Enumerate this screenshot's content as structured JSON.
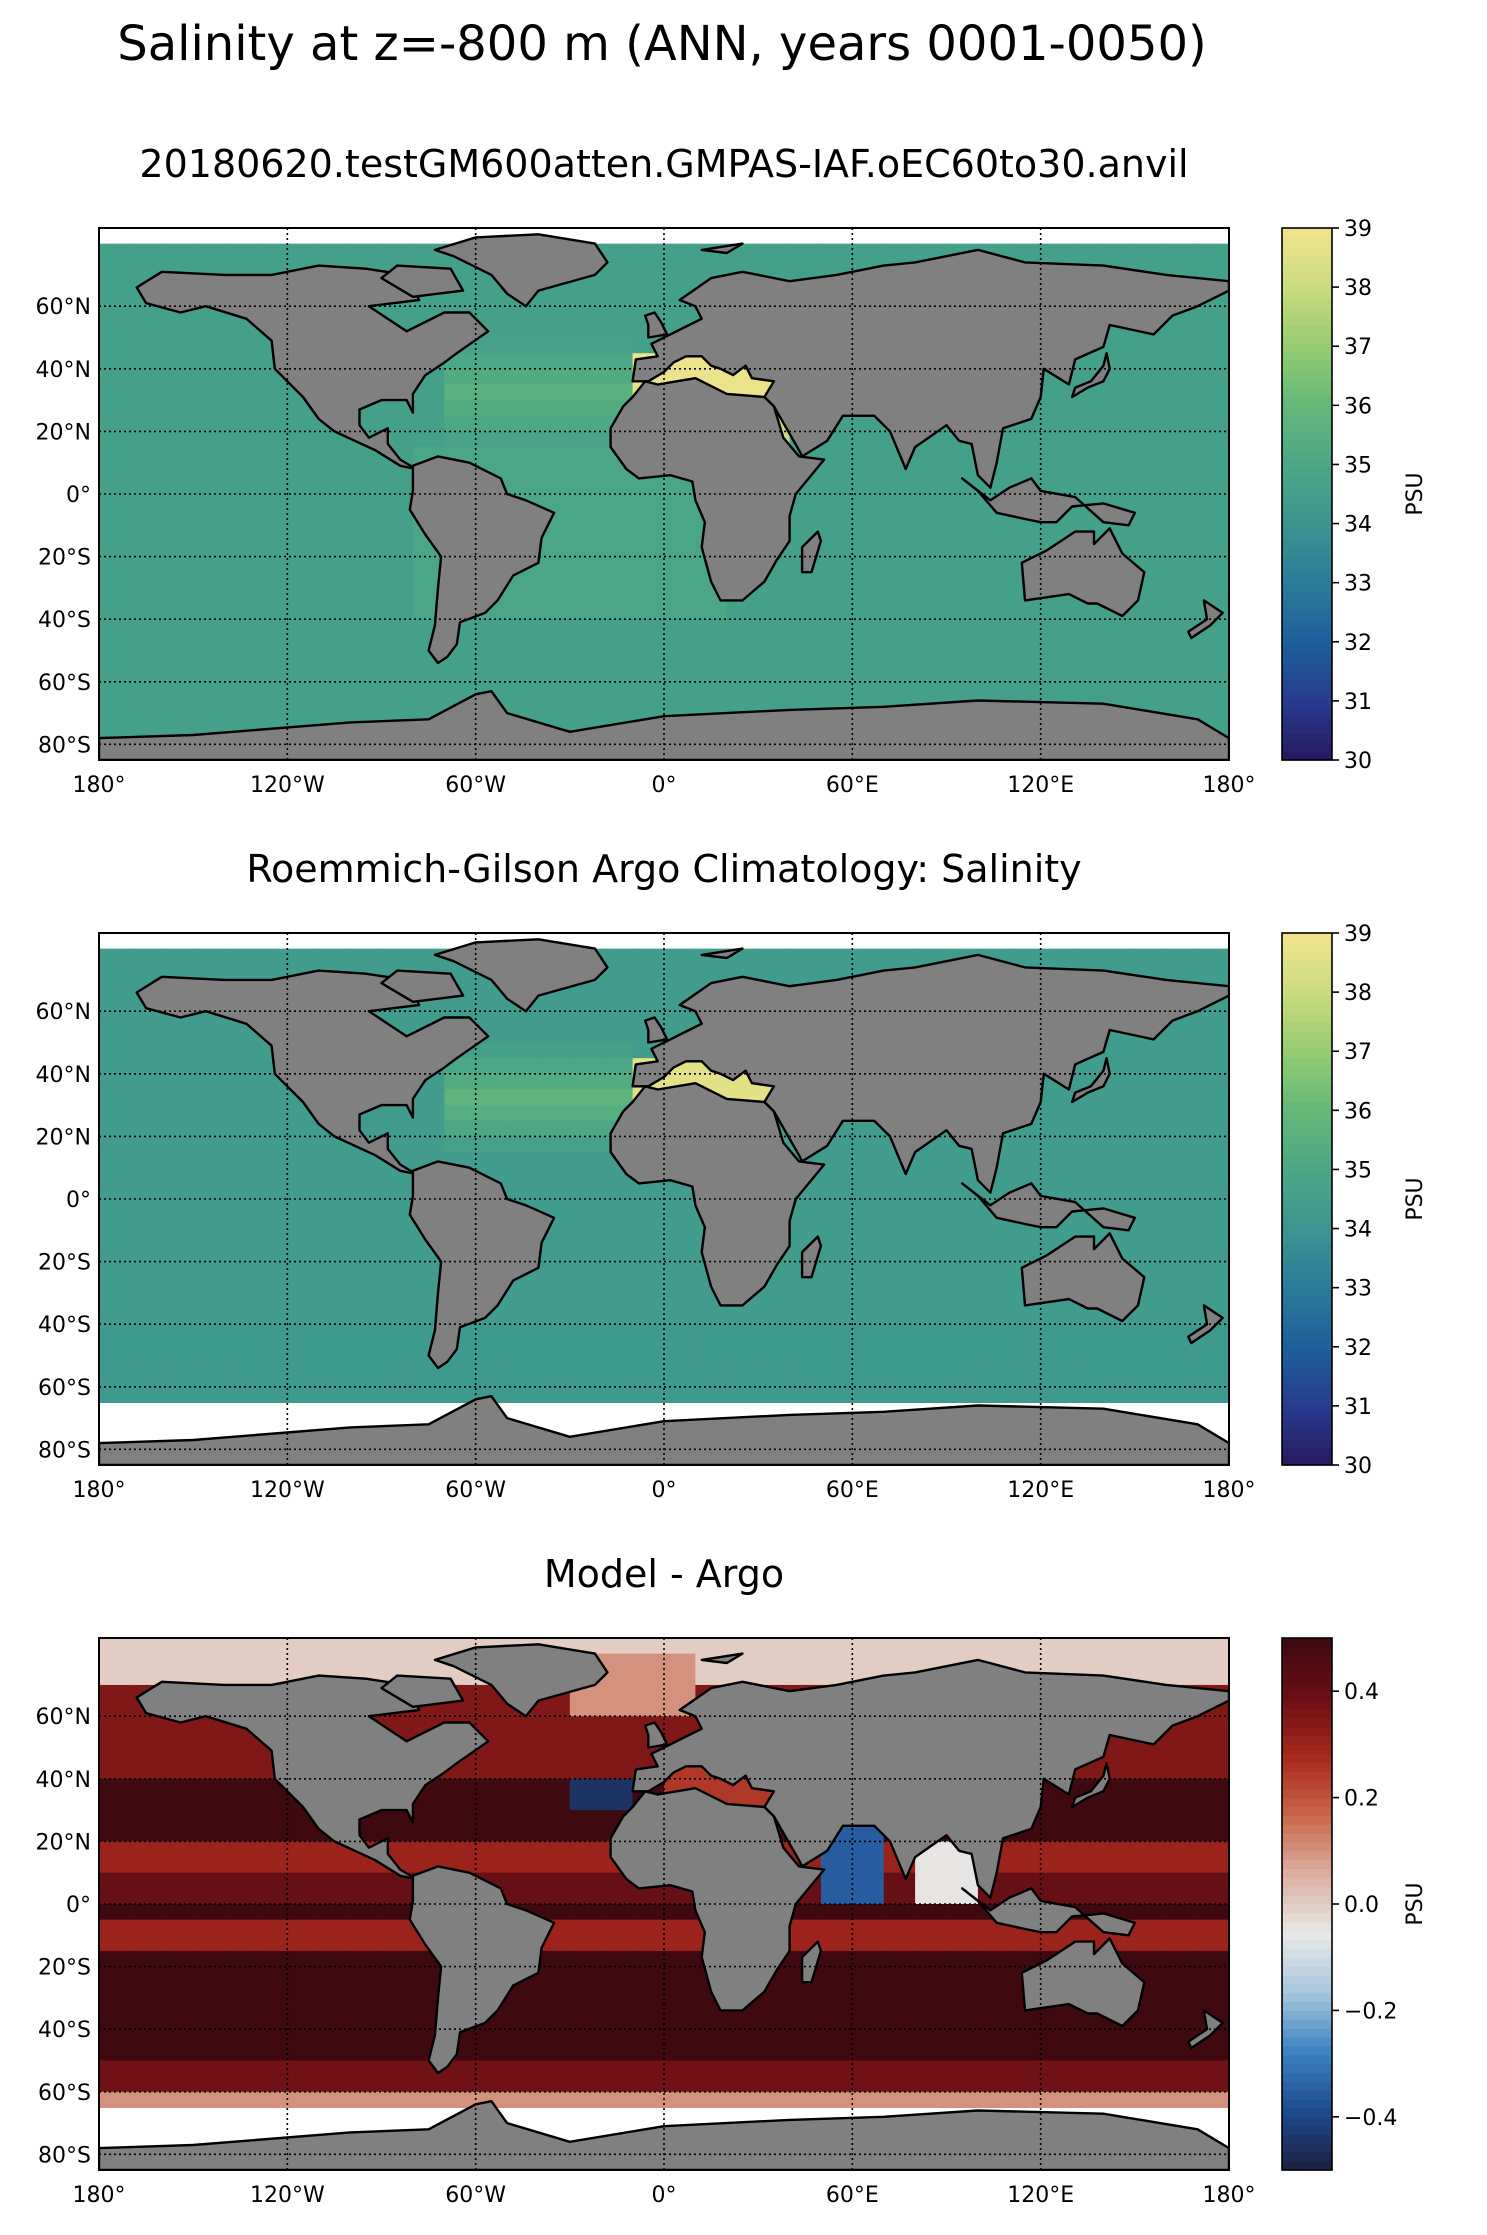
{
  "figure": {
    "title": "Salinity at z=-800 m (ANN, years 0001-0050)"
  },
  "map_axes": {
    "lon_ticks": [
      "180°",
      "120°W",
      "60°W",
      "0°",
      "60°E",
      "120°E",
      "180°"
    ],
    "lat_ticks": [
      "60°N",
      "40°N",
      "20°N",
      "0°",
      "20°S",
      "40°S",
      "60°S",
      "80°S"
    ],
    "lon_range": [
      -180,
      180
    ],
    "lat_range": [
      -85,
      85
    ],
    "grid": "dotted",
    "land_color": "#808080",
    "missing_color": "#ffffff"
  },
  "chart_data": [
    {
      "type": "heatmap",
      "title": "20180620.testGM600atten.GMPAS-IAF.oEC60to30.anvil",
      "colorbar": {
        "label": "PSU",
        "range": [
          30,
          39
        ],
        "ticks": [
          "30",
          "31",
          "32",
          "33",
          "34",
          "35",
          "36",
          "37",
          "38",
          "39"
        ],
        "colormap": [
          "#271a5e",
          "#273b8f",
          "#1e5f9c",
          "#2a7c98",
          "#3b9591",
          "#4ba786",
          "#64b878",
          "#95cb72",
          "#c9dc7d",
          "#f4e48f"
        ]
      },
      "values": {
        "open_ocean_typical": 34.6,
        "north_atlantic_subtropical": 35.6,
        "mediterranean": 38.8,
        "red_sea": 38.0
      }
    },
    {
      "type": "heatmap",
      "title": "Roemmich-Gilson Argo Climatology: Salinity",
      "colorbar": {
        "label": "PSU",
        "range": [
          30,
          39
        ],
        "ticks": [
          "30",
          "31",
          "32",
          "33",
          "34",
          "35",
          "36",
          "37",
          "38",
          "39"
        ],
        "colormap": [
          "#271a5e",
          "#273b8f",
          "#1e5f9c",
          "#2a7c98",
          "#3b9591",
          "#4ba786",
          "#64b878",
          "#95cb72",
          "#c9dc7d",
          "#f4e48f"
        ]
      },
      "values": {
        "open_ocean_typical": 34.4,
        "north_atlantic_subtropical": 35.8,
        "mediterranean": 38.6,
        "southern_limit_lat": -65
      }
    },
    {
      "type": "heatmap",
      "title": "Model - Argo",
      "colorbar": {
        "label": "PSU",
        "range": [
          -0.5,
          0.5
        ],
        "ticks": [
          "−0.4",
          "−0.2",
          "0.0",
          "0.2",
          "0.4"
        ],
        "tick_values": [
          -0.4,
          -0.2,
          0.0,
          0.2,
          0.4
        ],
        "colormap": [
          "#1b2040",
          "#1f4a8f",
          "#3a82c1",
          "#a6c6dc",
          "#e8e8e8",
          "#dcb0a0",
          "#c9664a",
          "#a8281e",
          "#6a0f14",
          "#3e0a10"
        ]
      },
      "latitude_bands": [
        {
          "lat": [
            70,
            85
          ],
          "value": 0.0
        },
        {
          "lat": [
            40,
            70
          ],
          "value": 0.35
        },
        {
          "lat": [
            20,
            40
          ],
          "value": 0.5
        },
        {
          "lat": [
            12,
            20
          ],
          "value": 0.3
        },
        {
          "lat": [
            2,
            12
          ],
          "value": 0.4
        },
        {
          "lat": [
            -5,
            2
          ],
          "value": 0.5
        },
        {
          "lat": [
            -15,
            -5
          ],
          "value": 0.3
        },
        {
          "lat": [
            -48,
            -15
          ],
          "value": 0.5
        },
        {
          "lat": [
            -58,
            -48
          ],
          "value": 0.38
        },
        {
          "lat": [
            -65,
            -58
          ],
          "value": 0.1
        },
        {
          "lat": [
            -85,
            -65
          ],
          "value": null
        }
      ],
      "regional_anomalies": [
        {
          "region": "Gulf of Cadiz / Mediterranean outflow",
          "value": -0.45
        },
        {
          "region": "Arabian Sea",
          "value": -0.35
        },
        {
          "region": "Bay of Bengal",
          "value": -0.05
        },
        {
          "region": "Nordic Seas",
          "value": 0.1
        },
        {
          "region": "Mediterranean",
          "value": 0.25
        }
      ]
    }
  ]
}
